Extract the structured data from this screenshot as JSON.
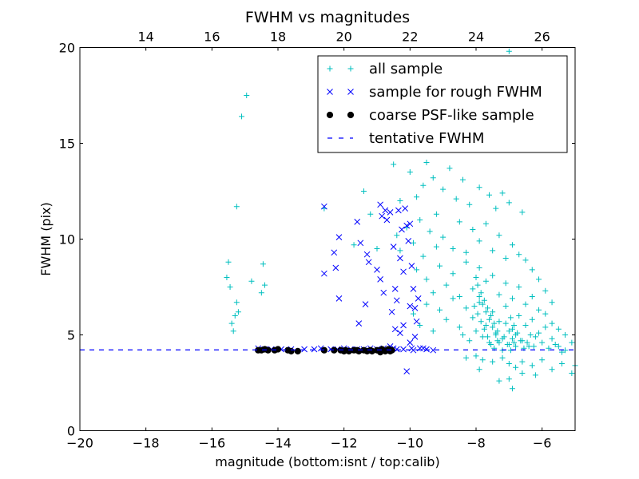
{
  "chart_data": {
    "type": "scatter",
    "title": "FWHM vs magnitudes",
    "xlabel": "magnitude (bottom:isnt / top:calib)",
    "ylabel": "FWHM (pix)",
    "xlim": [
      -20,
      -5
    ],
    "ylim": [
      0,
      20
    ],
    "x_ticks": [
      -20,
      -18,
      -16,
      -14,
      -12,
      -10,
      -8,
      -6
    ],
    "x_tick_labels": [
      "−20",
      "−18",
      "−16",
      "−14",
      "−12",
      "−10",
      "−8",
      "−6"
    ],
    "y_ticks": [
      0,
      5,
      10,
      15,
      20
    ],
    "y_tick_labels": [
      "0",
      "5",
      "10",
      "15",
      "20"
    ],
    "top_axis": {
      "ticks": [
        14,
        16,
        18,
        20,
        22,
        24,
        26
      ],
      "tick_labels": [
        "14",
        "16",
        "18",
        "20",
        "22",
        "24",
        "26"
      ],
      "offset": 32.0
    },
    "legend_position": "top-right",
    "grid": false,
    "series": [
      {
        "name": "all sample",
        "marker": "+",
        "color": "#00bfbf",
        "points": [
          [
            -15.5,
            8.8
          ],
          [
            -15.45,
            7.5
          ],
          [
            -15.55,
            8.0
          ],
          [
            -15.3,
            6.0
          ],
          [
            -15.25,
            6.7
          ],
          [
            -15.35,
            5.2
          ],
          [
            -15.4,
            5.6
          ],
          [
            -15.2,
            6.2
          ],
          [
            -15.25,
            11.7
          ],
          [
            -15.1,
            16.4
          ],
          [
            -14.95,
            17.5
          ],
          [
            -14.8,
            7.8
          ],
          [
            -14.45,
            8.7
          ],
          [
            -14.5,
            7.2
          ],
          [
            -14.4,
            7.6
          ],
          [
            -12.6,
            11.6
          ],
          [
            -11.7,
            9.7
          ],
          [
            -11.4,
            12.5
          ],
          [
            -11.2,
            11.3
          ],
          [
            -11.0,
            9.5
          ],
          [
            -10.5,
            13.9
          ],
          [
            -10.8,
            14.9
          ],
          [
            -10.3,
            12.0
          ],
          [
            -10.0,
            13.5
          ],
          [
            -9.8,
            12.2
          ],
          [
            -9.6,
            12.8
          ],
          [
            -9.5,
            14.0
          ],
          [
            -9.3,
            13.2
          ],
          [
            -9.0,
            12.6
          ],
          [
            -8.8,
            13.7
          ],
          [
            -8.6,
            12.1
          ],
          [
            -8.4,
            13.1
          ],
          [
            -8.2,
            11.8
          ],
          [
            -7.9,
            12.7
          ],
          [
            -7.6,
            12.3
          ],
          [
            -7.4,
            11.6
          ],
          [
            -7.2,
            12.4
          ],
          [
            -7.0,
            11.9
          ],
          [
            -6.6,
            11.4
          ],
          [
            -7.8,
            14.7
          ],
          [
            -8.1,
            15.3
          ],
          [
            -8.5,
            14.9
          ],
          [
            -7.5,
            15.2
          ],
          [
            -7.0,
            19.8
          ],
          [
            -9.2,
            11.3
          ],
          [
            -9.7,
            11.0
          ],
          [
            -10.3,
            9.4
          ],
          [
            -10.4,
            10.2
          ],
          [
            -10.1,
            10.6
          ],
          [
            -9.9,
            9.8
          ],
          [
            -9.6,
            9.1
          ],
          [
            -9.4,
            10.4
          ],
          [
            -9.2,
            9.6
          ],
          [
            -9.0,
            10.1
          ],
          [
            -8.7,
            9.5
          ],
          [
            -8.5,
            10.9
          ],
          [
            -8.3,
            9.3
          ],
          [
            -8.1,
            10.5
          ],
          [
            -7.9,
            9.9
          ],
          [
            -7.7,
            10.8
          ],
          [
            -7.5,
            9.4
          ],
          [
            -7.3,
            10.2
          ],
          [
            -7.1,
            9.0
          ],
          [
            -6.9,
            9.7
          ],
          [
            -6.7,
            9.2
          ],
          [
            -6.5,
            8.9
          ],
          [
            -6.3,
            8.4
          ],
          [
            -6.1,
            7.9
          ],
          [
            -5.9,
            7.3
          ],
          [
            -5.7,
            6.7
          ],
          [
            -9.8,
            8.4
          ],
          [
            -9.5,
            7.9
          ],
          [
            -9.3,
            7.2
          ],
          [
            -9.1,
            8.6
          ],
          [
            -8.9,
            7.6
          ],
          [
            -8.7,
            8.2
          ],
          [
            -8.5,
            7.0
          ],
          [
            -8.3,
            8.8
          ],
          [
            -8.1,
            7.4
          ],
          [
            -7.9,
            8.5
          ],
          [
            -7.7,
            7.8
          ],
          [
            -7.5,
            8.1
          ],
          [
            -7.3,
            7.1
          ],
          [
            -7.1,
            7.7
          ],
          [
            -6.9,
            6.9
          ],
          [
            -6.7,
            7.5
          ],
          [
            -6.5,
            6.6
          ],
          [
            -6.3,
            7.0
          ],
          [
            -6.1,
            6.3
          ],
          [
            -5.9,
            6.1
          ],
          [
            -5.7,
            5.6
          ],
          [
            -5.5,
            5.3
          ],
          [
            -5.3,
            5.0
          ],
          [
            -5.1,
            4.6
          ],
          [
            -9.9,
            6.1
          ],
          [
            -9.7,
            5.5
          ],
          [
            -9.5,
            6.6
          ],
          [
            -9.3,
            5.2
          ],
          [
            -9.1,
            6.3
          ],
          [
            -8.9,
            5.8
          ],
          [
            -8.7,
            6.9
          ],
          [
            -8.5,
            5.4
          ],
          [
            -8.3,
            6.4
          ],
          [
            -8.1,
            5.9
          ],
          [
            -7.9,
            6.7
          ],
          [
            -7.7,
            5.5
          ],
          [
            -7.5,
            6.2
          ],
          [
            -7.3,
            5.7
          ],
          [
            -7.1,
            6.5
          ],
          [
            -6.9,
            5.3
          ],
          [
            -6.7,
            6.0
          ],
          [
            -6.5,
            5.5
          ],
          [
            -6.3,
            5.8
          ],
          [
            -6.1,
            5.1
          ],
          [
            -5.9,
            5.4
          ],
          [
            -5.7,
            4.8
          ],
          [
            -5.5,
            4.4
          ],
          [
            -5.3,
            4.2
          ],
          [
            -8.4,
            5.0
          ],
          [
            -8.2,
            4.7
          ],
          [
            -8.0,
            5.2
          ],
          [
            -7.8,
            4.9
          ],
          [
            -7.6,
            4.6
          ],
          [
            -7.4,
            5.1
          ],
          [
            -7.2,
            4.8
          ],
          [
            -7.0,
            4.5
          ],
          [
            -6.8,
            5.0
          ],
          [
            -6.6,
            4.7
          ],
          [
            -6.4,
            4.4
          ],
          [
            -6.2,
            4.9
          ],
          [
            -6.0,
            4.6
          ],
          [
            -5.8,
            4.3
          ],
          [
            -5.6,
            4.5
          ],
          [
            -5.4,
            4.1
          ],
          [
            -8.0,
            3.9
          ],
          [
            -7.8,
            3.7
          ],
          [
            -7.5,
            3.6
          ],
          [
            -7.2,
            3.8
          ],
          [
            -7.0,
            3.5
          ],
          [
            -6.8,
            3.3
          ],
          [
            -6.6,
            3.6
          ],
          [
            -6.3,
            3.4
          ],
          [
            -6.0,
            3.7
          ],
          [
            -5.7,
            3.2
          ],
          [
            -5.4,
            3.5
          ],
          [
            -5.1,
            3.0
          ],
          [
            -5.0,
            3.4
          ],
          [
            -7.3,
            2.6
          ],
          [
            -7.0,
            2.7
          ],
          [
            -6.9,
            2.2
          ],
          [
            -6.6,
            3.0
          ],
          [
            -6.2,
            2.9
          ],
          [
            -7.9,
            3.2
          ],
          [
            -8.3,
            3.8
          ],
          [
            -8.0,
            8.0
          ],
          [
            -7.95,
            7.6
          ],
          [
            -7.85,
            7.2
          ],
          [
            -7.75,
            6.8
          ],
          [
            -7.65,
            6.4
          ],
          [
            -7.55,
            6.0
          ],
          [
            -7.45,
            5.6
          ],
          [
            -7.35,
            5.2
          ],
          [
            -7.9,
            7.0
          ],
          [
            -7.8,
            6.6
          ],
          [
            -7.7,
            6.2
          ],
          [
            -7.6,
            5.8
          ],
          [
            -7.5,
            5.4
          ],
          [
            -7.4,
            5.0
          ],
          [
            -7.3,
            4.6
          ],
          [
            -7.2,
            4.2
          ],
          [
            -8.05,
            6.5
          ],
          [
            -7.95,
            6.1
          ],
          [
            -7.85,
            5.7
          ],
          [
            -7.75,
            5.3
          ],
          [
            -7.65,
            4.9
          ],
          [
            -7.55,
            4.5
          ],
          [
            -7.45,
            4.3
          ],
          [
            -7.35,
            4.7
          ],
          [
            -6.95,
            5.9
          ],
          [
            -6.85,
            5.5
          ],
          [
            -6.75,
            5.1
          ],
          [
            -6.65,
            4.7
          ],
          [
            -6.55,
            4.3
          ],
          [
            -6.45,
            4.6
          ],
          [
            -6.35,
            5.0
          ],
          [
            -6.25,
            4.4
          ],
          [
            -7.1,
            5.6
          ],
          [
            -7.0,
            5.2
          ],
          [
            -6.9,
            4.8
          ],
          [
            -6.8,
            4.4
          ],
          [
            -7.15,
            4.9
          ],
          [
            -7.05,
            4.5
          ],
          [
            -6.95,
            4.2
          ],
          [
            -6.85,
            4.6
          ]
        ]
      },
      {
        "name": "sample for rough FWHM",
        "marker": "x",
        "color": "#0000ff",
        "points": [
          [
            -12.6,
            11.7
          ],
          [
            -12.6,
            8.2
          ],
          [
            -12.3,
            9.3
          ],
          [
            -12.25,
            8.5
          ],
          [
            -12.15,
            10.1
          ],
          [
            -12.15,
            6.9
          ],
          [
            -11.6,
            10.9
          ],
          [
            -11.55,
            5.6
          ],
          [
            -11.5,
            9.8
          ],
          [
            -11.3,
            9.2
          ],
          [
            -11.35,
            6.6
          ],
          [
            -11.25,
            8.8
          ],
          [
            -11.0,
            8.4
          ],
          [
            -10.9,
            11.8
          ],
          [
            -10.9,
            7.9
          ],
          [
            -10.85,
            11.2
          ],
          [
            -10.75,
            11.5
          ],
          [
            -10.8,
            7.2
          ],
          [
            -10.7,
            11.0
          ],
          [
            -10.6,
            11.4
          ],
          [
            -10.5,
            9.6
          ],
          [
            -10.55,
            6.2
          ],
          [
            -10.45,
            7.4
          ],
          [
            -10.4,
            6.8
          ],
          [
            -10.35,
            11.5
          ],
          [
            -10.3,
            9.0
          ],
          [
            -10.25,
            10.5
          ],
          [
            -10.2,
            8.3
          ],
          [
            -10.15,
            11.6
          ],
          [
            -10.1,
            10.7
          ],
          [
            -10.05,
            9.9
          ],
          [
            -10.0,
            10.8
          ],
          [
            -9.95,
            8.6
          ],
          [
            -9.9,
            7.4
          ],
          [
            -9.85,
            6.4
          ],
          [
            -10.0,
            6.5
          ],
          [
            -10.2,
            5.5
          ],
          [
            -10.3,
            5.1
          ],
          [
            -10.45,
            5.3
          ],
          [
            -10.0,
            4.6
          ],
          [
            -10.6,
            4.4
          ],
          [
            -10.1,
            3.1
          ],
          [
            -9.85,
            4.9
          ],
          [
            -9.75,
            6.9
          ],
          [
            -9.8,
            5.7
          ],
          [
            -9.95,
            4.3
          ],
          [
            -9.7,
            4.3
          ],
          [
            -9.9,
            4.2
          ],
          [
            -10.2,
            4.25
          ],
          [
            -10.4,
            4.25
          ],
          [
            -10.6,
            4.25
          ],
          [
            -10.8,
            4.3
          ],
          [
            -11.0,
            4.25
          ],
          [
            -11.2,
            4.3
          ],
          [
            -11.4,
            4.25
          ],
          [
            -11.6,
            4.25
          ],
          [
            -11.8,
            4.25
          ],
          [
            -12.0,
            4.3
          ],
          [
            -12.2,
            4.25
          ],
          [
            -12.4,
            4.25
          ],
          [
            -12.7,
            4.3
          ],
          [
            -12.9,
            4.25
          ],
          [
            -13.2,
            4.25
          ],
          [
            -13.6,
            4.25
          ],
          [
            -13.9,
            4.25
          ],
          [
            -14.2,
            4.25
          ],
          [
            -14.4,
            4.25
          ],
          [
            -14.6,
            4.3
          ],
          [
            -9.6,
            4.3
          ],
          [
            -9.5,
            4.25
          ],
          [
            -9.3,
            4.2
          ],
          [
            -10.5,
            4.3
          ]
        ]
      },
      {
        "name": "coarse PSF-like sample",
        "marker": "o",
        "color": "#000000",
        "points": [
          [
            -14.6,
            4.2
          ],
          [
            -14.5,
            4.2
          ],
          [
            -14.4,
            4.25
          ],
          [
            -14.3,
            4.2
          ],
          [
            -14.1,
            4.2
          ],
          [
            -14.0,
            4.25
          ],
          [
            -13.7,
            4.2
          ],
          [
            -13.6,
            4.15
          ],
          [
            -13.4,
            4.15
          ],
          [
            -12.6,
            4.2
          ],
          [
            -12.3,
            4.2
          ],
          [
            -12.1,
            4.2
          ],
          [
            -11.95,
            4.2
          ],
          [
            -11.85,
            4.15
          ],
          [
            -11.7,
            4.2
          ],
          [
            -11.55,
            4.15
          ],
          [
            -11.4,
            4.2
          ],
          [
            -11.3,
            4.15
          ],
          [
            -11.15,
            4.15
          ],
          [
            -11.0,
            4.2
          ],
          [
            -10.9,
            4.1
          ],
          [
            -10.85,
            4.25
          ],
          [
            -10.75,
            4.15
          ],
          [
            -10.7,
            4.2
          ],
          [
            -10.6,
            4.15
          ],
          [
            -10.55,
            4.2
          ],
          [
            -11.6,
            4.2
          ],
          [
            -11.2,
            4.2
          ],
          [
            -10.65,
            4.25
          ],
          [
            -12.0,
            4.15
          ]
        ]
      }
    ],
    "reference_lines": [
      {
        "name": "tentative FWHM",
        "y": 4.22,
        "color": "#0000ff",
        "style": "dashed"
      }
    ]
  }
}
